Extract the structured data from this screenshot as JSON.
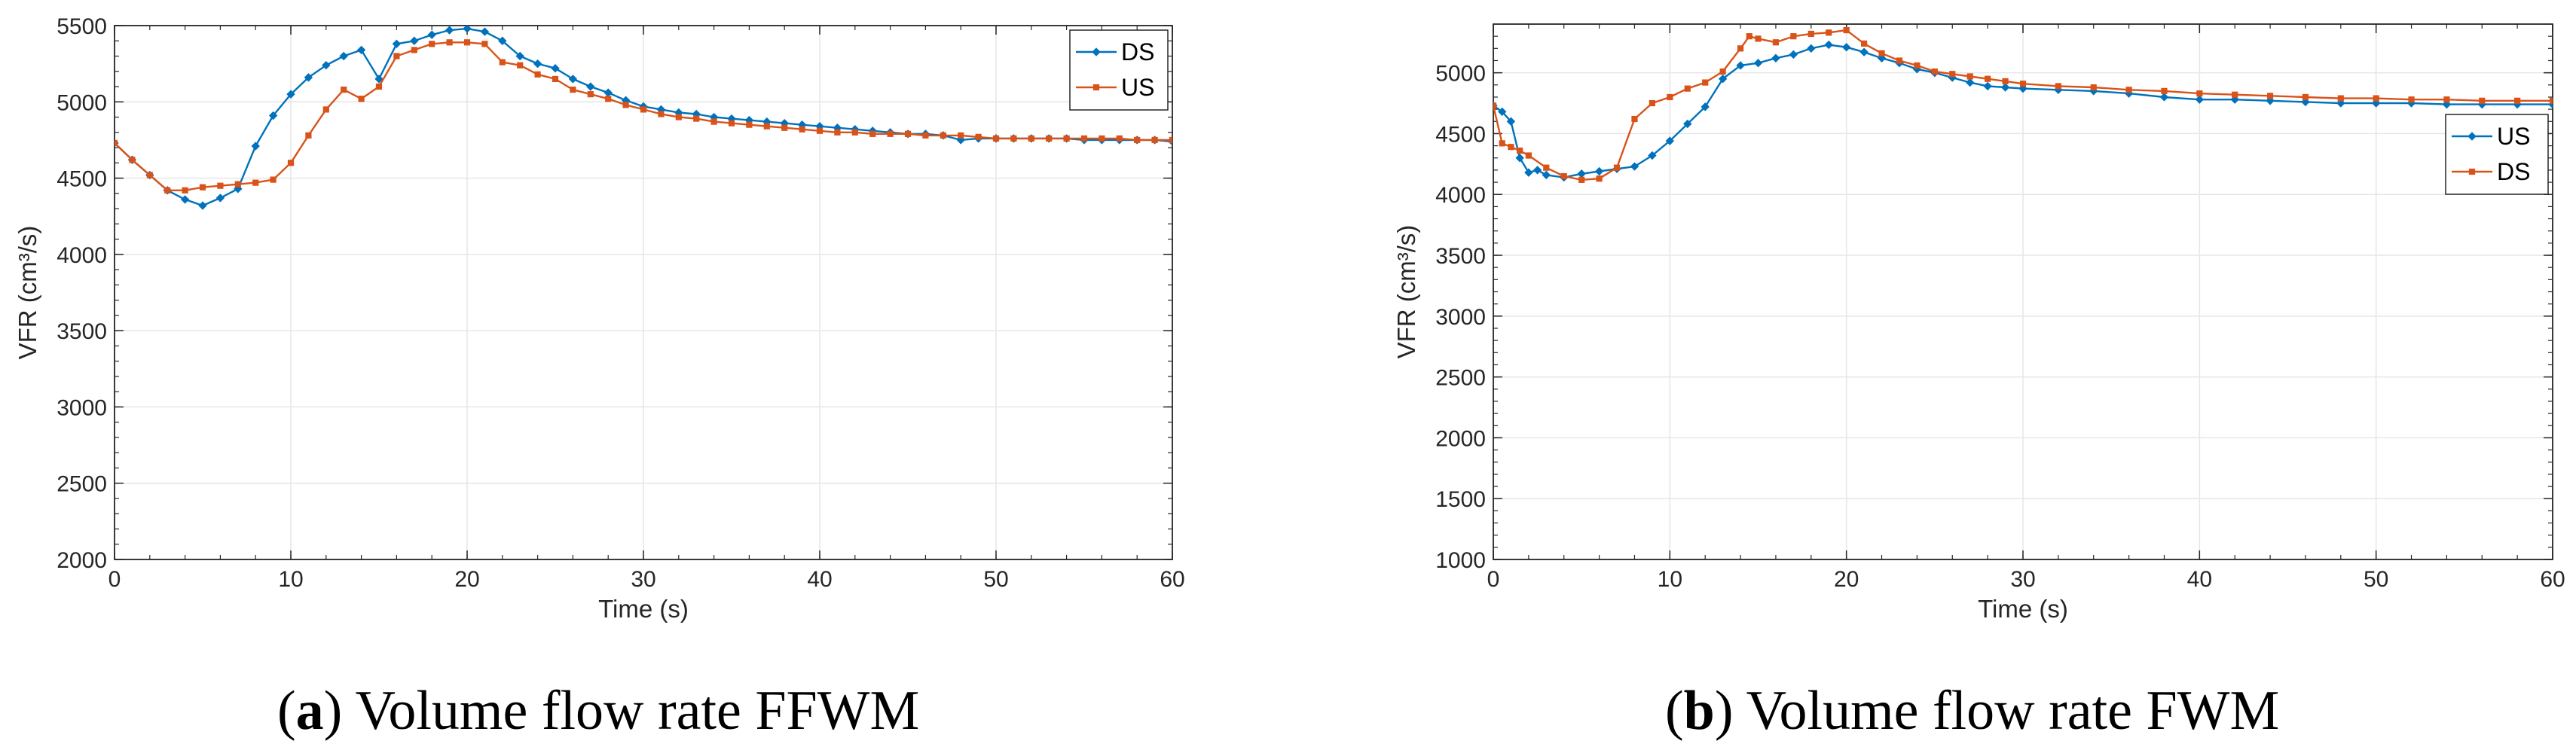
{
  "chart_data": [
    {
      "type": "line",
      "caption_letter": "a",
      "caption_text": ") Volume flow rate FFWM",
      "xlabel": "Time (s)",
      "ylabel": "VFR (cm³/s)",
      "xlim": [
        0,
        60
      ],
      "ylim": [
        2000,
        5500
      ],
      "xticks": [
        0,
        10,
        20,
        30,
        40,
        50,
        60
      ],
      "yticks": [
        2000,
        2500,
        3000,
        3500,
        4000,
        4500,
        5000,
        5500
      ],
      "grid": true,
      "legend_position": "top-right",
      "series": [
        {
          "name": "DS",
          "color": "#0072BD",
          "marker": "diamond",
          "x": [
            0,
            1,
            2,
            3,
            4,
            5,
            6,
            7,
            8,
            9,
            10,
            11,
            12,
            13,
            14,
            15,
            16,
            17,
            18,
            19,
            20,
            21,
            22,
            23,
            24,
            25,
            26,
            27,
            28,
            29,
            30,
            31,
            32,
            33,
            34,
            35,
            36,
            37,
            38,
            39,
            40,
            41,
            42,
            43,
            44,
            45,
            46,
            47,
            48,
            49,
            50,
            51,
            52,
            53,
            54,
            55,
            56,
            57,
            58,
            59,
            60
          ],
          "y": [
            4730,
            4620,
            4520,
            4420,
            4360,
            4320,
            4370,
            4430,
            4710,
            4910,
            5050,
            5160,
            5240,
            5300,
            5340,
            5150,
            5380,
            5400,
            5440,
            5470,
            5480,
            5460,
            5400,
            5300,
            5250,
            5220,
            5150,
            5100,
            5060,
            5010,
            4970,
            4950,
            4930,
            4920,
            4900,
            4890,
            4880,
            4870,
            4860,
            4850,
            4840,
            4830,
            4820,
            4810,
            4800,
            4790,
            4790,
            4780,
            4750,
            4760,
            4760,
            4760,
            4760,
            4760,
            4760,
            4750,
            4750,
            4750,
            4750,
            4750,
            4740
          ]
        },
        {
          "name": "US",
          "color": "#D95319",
          "marker": "square",
          "x": [
            0,
            1,
            2,
            3,
            4,
            5,
            6,
            7,
            8,
            9,
            10,
            11,
            12,
            13,
            14,
            15,
            16,
            17,
            18,
            19,
            20,
            21,
            22,
            23,
            24,
            25,
            26,
            27,
            28,
            29,
            30,
            31,
            32,
            33,
            34,
            35,
            36,
            37,
            38,
            39,
            40,
            41,
            42,
            43,
            44,
            45,
            46,
            47,
            48,
            49,
            50,
            51,
            52,
            53,
            54,
            55,
            56,
            57,
            58,
            59,
            60
          ],
          "y": [
            4730,
            4620,
            4520,
            4420,
            4420,
            4440,
            4450,
            4460,
            4470,
            4490,
            4600,
            4780,
            4950,
            5080,
            5020,
            5100,
            5300,
            5340,
            5380,
            5390,
            5390,
            5380,
            5260,
            5240,
            5180,
            5150,
            5080,
            5050,
            5020,
            4980,
            4950,
            4920,
            4900,
            4890,
            4870,
            4860,
            4850,
            4840,
            4830,
            4820,
            4810,
            4800,
            4800,
            4790,
            4790,
            4790,
            4780,
            4780,
            4780,
            4770,
            4760,
            4760,
            4760,
            4760,
            4760,
            4760,
            4760,
            4760,
            4750,
            4750,
            4750
          ]
        }
      ]
    },
    {
      "type": "line",
      "caption_letter": "b",
      "caption_text": ") Volume flow rate FWM",
      "xlabel": "Time (s)",
      "ylabel": "VFR (cm³/s)",
      "xlim": [
        0,
        60
      ],
      "ylim": [
        1000,
        5400
      ],
      "xticks": [
        0,
        10,
        20,
        30,
        40,
        50,
        60
      ],
      "yticks": [
        1000,
        1500,
        2000,
        2500,
        3000,
        3500,
        4000,
        4500,
        5000
      ],
      "grid": true,
      "legend_position": "right",
      "series": [
        {
          "name": "US",
          "color": "#0072BD",
          "marker": "diamond",
          "x": [
            0,
            0.5,
            1,
            1.5,
            2,
            2.5,
            3,
            4,
            5,
            6,
            7,
            8,
            9,
            10,
            11,
            12,
            13,
            14,
            15,
            16,
            17,
            18,
            19,
            20,
            21,
            22,
            23,
            24,
            25,
            26,
            27,
            28,
            29,
            30,
            32,
            34,
            36,
            38,
            40,
            42,
            44,
            46,
            48,
            50,
            52,
            54,
            56,
            58,
            60
          ],
          "y": [
            4730,
            4680,
            4600,
            4300,
            4180,
            4200,
            4160,
            4140,
            4170,
            4190,
            4210,
            4230,
            4320,
            4440,
            4580,
            4720,
            4950,
            5060,
            5080,
            5120,
            5150,
            5200,
            5230,
            5210,
            5170,
            5120,
            5080,
            5030,
            5000,
            4960,
            4920,
            4890,
            4880,
            4870,
            4860,
            4850,
            4830,
            4800,
            4780,
            4780,
            4770,
            4760,
            4750,
            4750,
            4750,
            4740,
            4740,
            4740,
            4740
          ]
        },
        {
          "name": "DS",
          "color": "#D95319",
          "marker": "square",
          "x": [
            0,
            0.5,
            1,
            1.5,
            2,
            3,
            4,
            5,
            6,
            7,
            8,
            9,
            10,
            11,
            12,
            13,
            14,
            14.5,
            15,
            16,
            17,
            18,
            19,
            20,
            21,
            22,
            23,
            24,
            25,
            26,
            27,
            28,
            29,
            30,
            32,
            34,
            36,
            38,
            40,
            42,
            44,
            46,
            48,
            50,
            52,
            54,
            56,
            58,
            60
          ],
          "y": [
            4730,
            4420,
            4390,
            4360,
            4320,
            4220,
            4150,
            4120,
            4130,
            4220,
            4620,
            4750,
            4800,
            4870,
            4920,
            5010,
            5200,
            5300,
            5280,
            5250,
            5300,
            5320,
            5330,
            5350,
            5240,
            5160,
            5100,
            5060,
            5010,
            4990,
            4970,
            4950,
            4930,
            4910,
            4890,
            4880,
            4860,
            4850,
            4830,
            4820,
            4810,
            4800,
            4790,
            4790,
            4780,
            4780,
            4770,
            4770,
            4770
          ]
        }
      ]
    }
  ]
}
